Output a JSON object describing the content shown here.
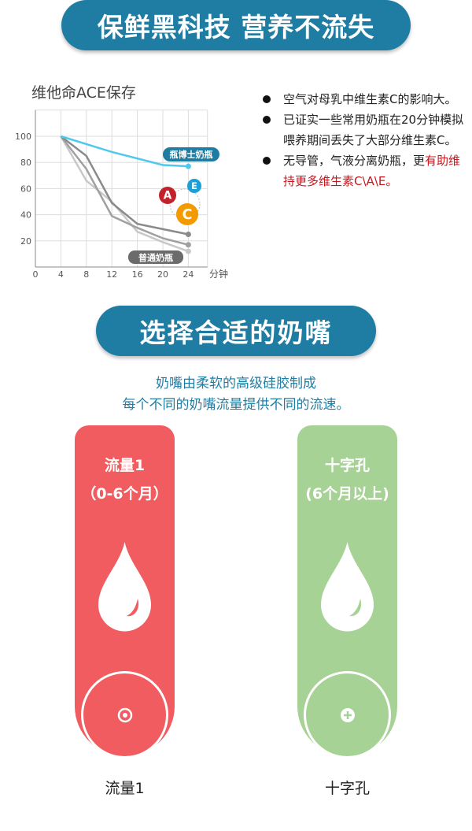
{
  "banner1": "保鲜黑科技 营养不流失",
  "banner2": "选择合适的奶嘴",
  "chart_data": {
    "type": "line",
    "title": "维他命ACE保存",
    "xlabel": "分钟",
    "x_ticks": [
      0,
      4,
      8,
      12,
      16,
      20,
      24
    ],
    "y_ticks": [
      20,
      40,
      60,
      80,
      100
    ],
    "xlim": [
      0,
      27
    ],
    "ylim": [
      0,
      120
    ],
    "grid": true,
    "x": [
      4,
      8,
      12,
      16,
      20,
      24
    ],
    "series": [
      {
        "name": "瓶博士奶瓶",
        "color": "#4fc8f0",
        "values": [
          100,
          94,
          88,
          83,
          78,
          77
        ]
      },
      {
        "color": "#8a8a8a",
        "values": [
          100,
          85,
          49,
          33,
          29,
          25
        ]
      },
      {
        "color": "#a0a0a0",
        "values": [
          100,
          75,
          39,
          30,
          22,
          17
        ]
      },
      {
        "color": "#c8c8c8",
        "values": [
          100,
          66,
          50,
          27,
          19,
          12
        ]
      }
    ],
    "labels": {
      "brand": "瓶博士奶瓶",
      "normal": "普通奶瓶"
    },
    "badges": [
      "A",
      "E",
      "C"
    ]
  },
  "bullets": [
    {
      "text": "空气对母乳中维生素C的影响大。"
    },
    {
      "text": "已证实一些常用奶瓶在20分钟模拟喂养期间丢失了大部分维生素C。"
    },
    {
      "text": "无导管，气液分离奶瓶，更",
      "highlight": "有助维持更多维生素C\\A\\E。"
    }
  ],
  "intro": [
    "奶嘴由柔软的高级硅胶制成",
    "每个不同的奶嘴流量提供不同的流速。"
  ],
  "cards": [
    {
      "title": "流量1",
      "sub": "（0-6个月）",
      "label": "流量1",
      "color": "#f05c5f",
      "icon": "dot-ring-icon"
    },
    {
      "title": "十字孔",
      "sub": "(6个月以上)",
      "label": "十字孔",
      "color": "#a6d295",
      "icon": "cross-icon"
    }
  ]
}
